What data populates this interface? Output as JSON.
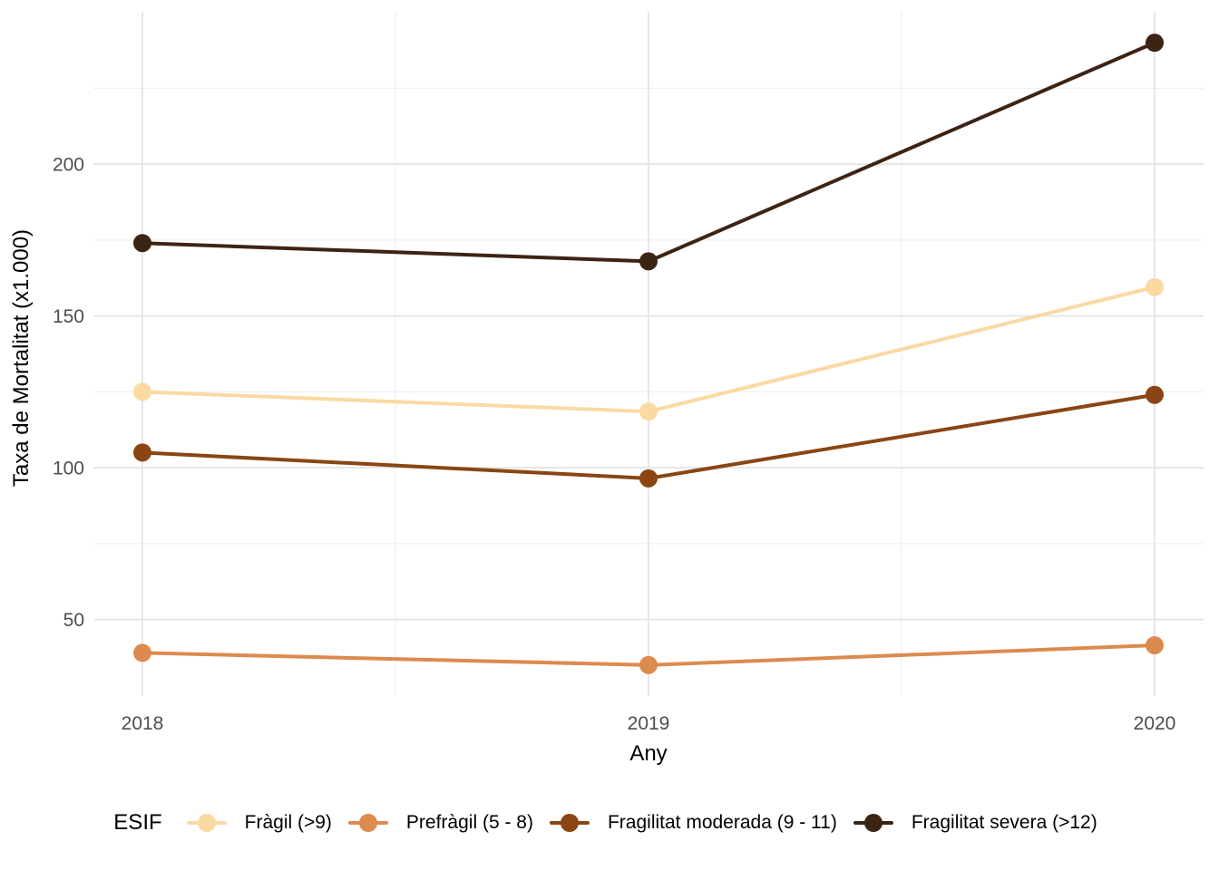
{
  "chart_data": {
    "type": "line",
    "title": "",
    "xlabel": "Any",
    "ylabel": "Taxa de Mortalitat (x1.000)",
    "categories": [
      "2018",
      "2019",
      "2020"
    ],
    "series": [
      {
        "name": "Fràgil (>9)",
        "color": "#FBD9A3",
        "values": [
          125,
          118.5,
          159.5
        ]
      },
      {
        "name": "Prefràgil (5 - 8)",
        "color": "#DD8A4F",
        "values": [
          39,
          35,
          41.5
        ]
      },
      {
        "name": "Fragilitat moderada (9 - 11)",
        "color": "#8A4513",
        "values": [
          105,
          96.5,
          124
        ]
      },
      {
        "name": "Fragilitat severa (>12)",
        "color": "#3C2415",
        "values": [
          174,
          168,
          240
        ]
      }
    ],
    "ylim": [
      24.8,
      250.2
    ],
    "y_major_ticks": [
      50,
      100,
      150,
      200
    ],
    "y_minor_ticks": [
      75,
      125,
      175,
      225
    ],
    "grid": true,
    "legend": {
      "title": "ESIF",
      "position": "bottom"
    },
    "style": {
      "grid_major_color": "#E4E4E4",
      "grid_minor_color": "#F0F0F0",
      "tick_label_color": "#4D4D4D",
      "axis_title_color": "#000000",
      "background": "#FFFFFF"
    }
  }
}
